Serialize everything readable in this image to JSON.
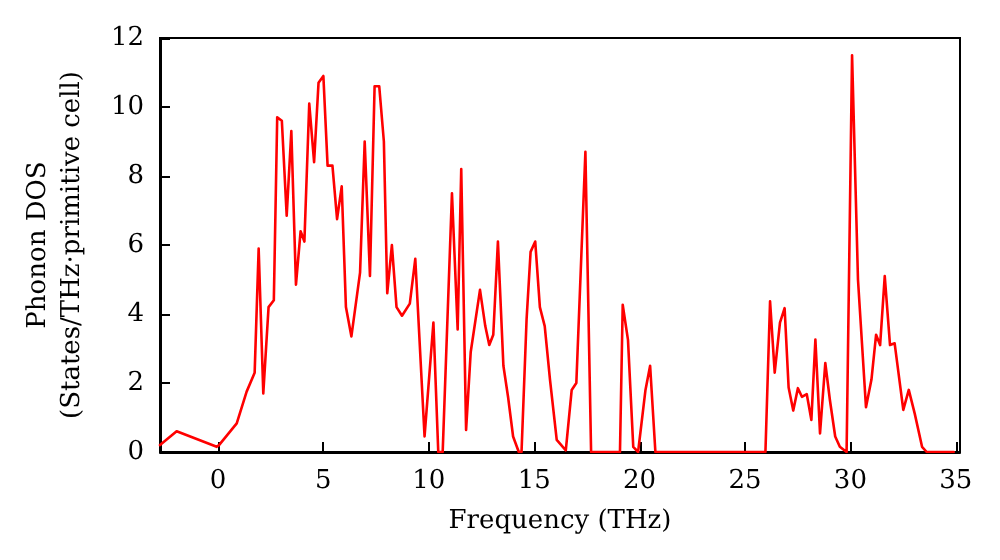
{
  "chart_data": {
    "type": "line",
    "xlabel": "Frequency (THz)",
    "ylabel": "Phonon DOS\n(States/THz·primitive cell)",
    "xlim": [
      -2.75,
      35.2
    ],
    "xticks": [
      0,
      5,
      10,
      15,
      20,
      25,
      30,
      35
    ],
    "ylim": [
      0,
      12
    ],
    "yticks": [
      0,
      2,
      4,
      6,
      8,
      10,
      12
    ],
    "grid": false,
    "marker": "none",
    "line_style": "solid",
    "series": [
      {
        "color": "#ff0000",
        "x": [
          -2.75,
          -1.96,
          -0.06,
          0.05,
          0.89,
          1.36,
          1.74,
          1.93,
          2.15,
          2.4,
          2.65,
          2.81,
          3.03,
          3.26,
          3.48,
          3.7,
          3.92,
          4.1,
          4.33,
          4.56,
          4.77,
          5.0,
          5.2,
          5.43,
          5.65,
          5.87,
          6.07,
          6.33,
          6.74,
          6.96,
          7.21,
          7.43,
          7.65,
          7.87,
          8.03,
          8.25,
          8.47,
          8.73,
          9.1,
          9.36,
          9.8,
          10.22,
          10.45,
          10.66,
          11.1,
          11.37,
          11.54,
          11.77,
          11.99,
          12.43,
          12.68,
          12.87,
          13.06,
          13.28,
          13.54,
          13.76,
          14.0,
          14.27,
          14.4,
          14.64,
          14.83,
          15.05,
          15.27,
          15.5,
          15.75,
          16.07,
          16.5,
          16.78,
          17.0,
          17.43,
          17.7,
          19.07,
          19.2,
          19.45,
          19.7,
          19.93,
          20.28,
          20.5,
          20.75,
          25.97,
          26.19,
          26.41,
          26.66,
          26.88,
          27.07,
          27.29,
          27.51,
          27.7,
          27.93,
          28.15,
          28.34,
          28.56,
          28.81,
          29.03,
          29.28,
          29.5,
          29.82,
          30.08,
          30.36,
          30.74,
          31.0,
          31.22,
          31.41,
          31.63,
          31.88,
          32.1,
          32.51,
          32.77,
          33.05,
          33.4,
          33.62,
          34.9
        ],
        "values": [
          0.2,
          0.6,
          0.15,
          0.2,
          0.83,
          1.75,
          2.3,
          5.9,
          1.7,
          4.2,
          4.4,
          9.7,
          9.6,
          6.85,
          9.3,
          4.85,
          6.4,
          6.1,
          10.1,
          8.4,
          10.7,
          10.9,
          8.3,
          8.3,
          6.75,
          7.7,
          4.2,
          3.35,
          5.2,
          9.0,
          5.1,
          10.6,
          10.6,
          9.0,
          4.6,
          6.0,
          4.2,
          3.95,
          4.3,
          5.6,
          0.45,
          3.75,
          0,
          0,
          7.5,
          3.55,
          8.2,
          0.64,
          2.9,
          4.7,
          3.65,
          3.1,
          3.4,
          6.1,
          2.5,
          1.6,
          0.45,
          0,
          0,
          3.85,
          5.8,
          6.1,
          4.2,
          3.65,
          2.1,
          0.35,
          0.05,
          1.8,
          2.0,
          8.7,
          0,
          0,
          4.27,
          3.25,
          0.15,
          0,
          1.8,
          2.5,
          0,
          0,
          4.37,
          2.3,
          3.75,
          4.17,
          1.87,
          1.2,
          1.85,
          1.6,
          1.68,
          0.93,
          3.26,
          0.54,
          2.58,
          1.5,
          0.45,
          0.15,
          0,
          11.5,
          5.0,
          1.3,
          2.1,
          3.4,
          3.1,
          5.1,
          3.1,
          3.15,
          1.22,
          1.8,
          1.12,
          0.15,
          0,
          0
        ]
      }
    ]
  }
}
